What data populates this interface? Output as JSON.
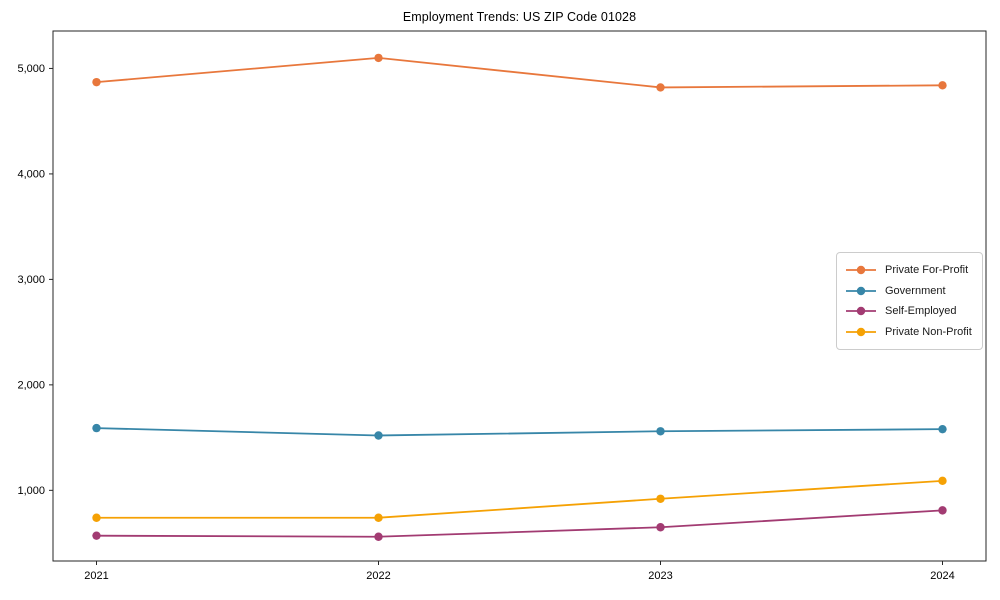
{
  "title": "Employment Trends: US ZIP Code 01028",
  "chart_data": {
    "type": "line",
    "x": [
      2021,
      2022,
      2023,
      2024
    ],
    "xtick_labels": [
      "2021",
      "2022",
      "2023",
      "2024"
    ],
    "series": [
      {
        "name": "Private For-Profit",
        "color": "#E8773C",
        "values": [
          4870,
          5100,
          4820,
          4840
        ]
      },
      {
        "name": "Government",
        "color": "#3786A8",
        "values": [
          1590,
          1520,
          1560,
          1580
        ]
      },
      {
        "name": "Self-Employed",
        "color": "#A23B72",
        "values": [
          570,
          560,
          650,
          810
        ]
      },
      {
        "name": "Private Non-Profit",
        "color": "#F5A104",
        "values": [
          740,
          740,
          920,
          1090
        ]
      }
    ],
    "yticks": {
      "values": [
        1000,
        2000,
        3000,
        4000,
        5000
      ],
      "labels": [
        "1,000",
        "2,000",
        "3,000",
        "4,000",
        "5,000"
      ]
    },
    "ylim": [
      330,
      5355
    ],
    "grid": false,
    "marker": "circle",
    "legend_position": "center right",
    "frame_color": "#262626"
  }
}
